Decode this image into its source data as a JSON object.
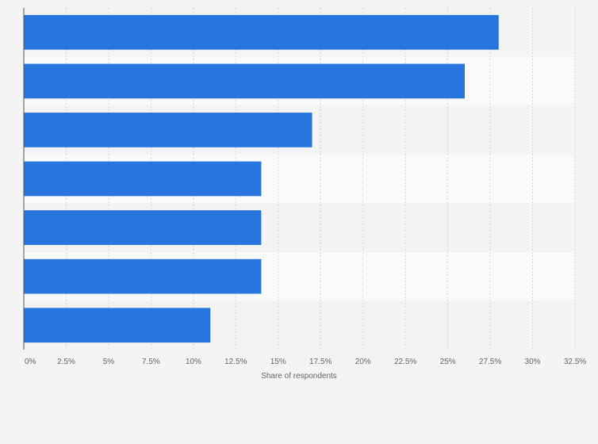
{
  "chart_data": {
    "type": "bar",
    "orientation": "horizontal",
    "categories": [
      "",
      "",
      "",
      "",
      "",
      "",
      ""
    ],
    "values": [
      28,
      26,
      17,
      14,
      14,
      14,
      11
    ],
    "title": "",
    "xlabel": "Share of respondents",
    "ylabel": "",
    "xlim": [
      0,
      32.5
    ],
    "xticks": [
      "0%",
      "2.5%",
      "5%",
      "7.5%",
      "10%",
      "12.5%",
      "15%",
      "17.5%",
      "20%",
      "22.5%",
      "25%",
      "27.5%",
      "30%",
      "32.5%"
    ],
    "grid": true,
    "legend": "none",
    "bar_color": "#2876dd",
    "band_colors": [
      "#f4f4f4",
      "#fafafa"
    ]
  }
}
